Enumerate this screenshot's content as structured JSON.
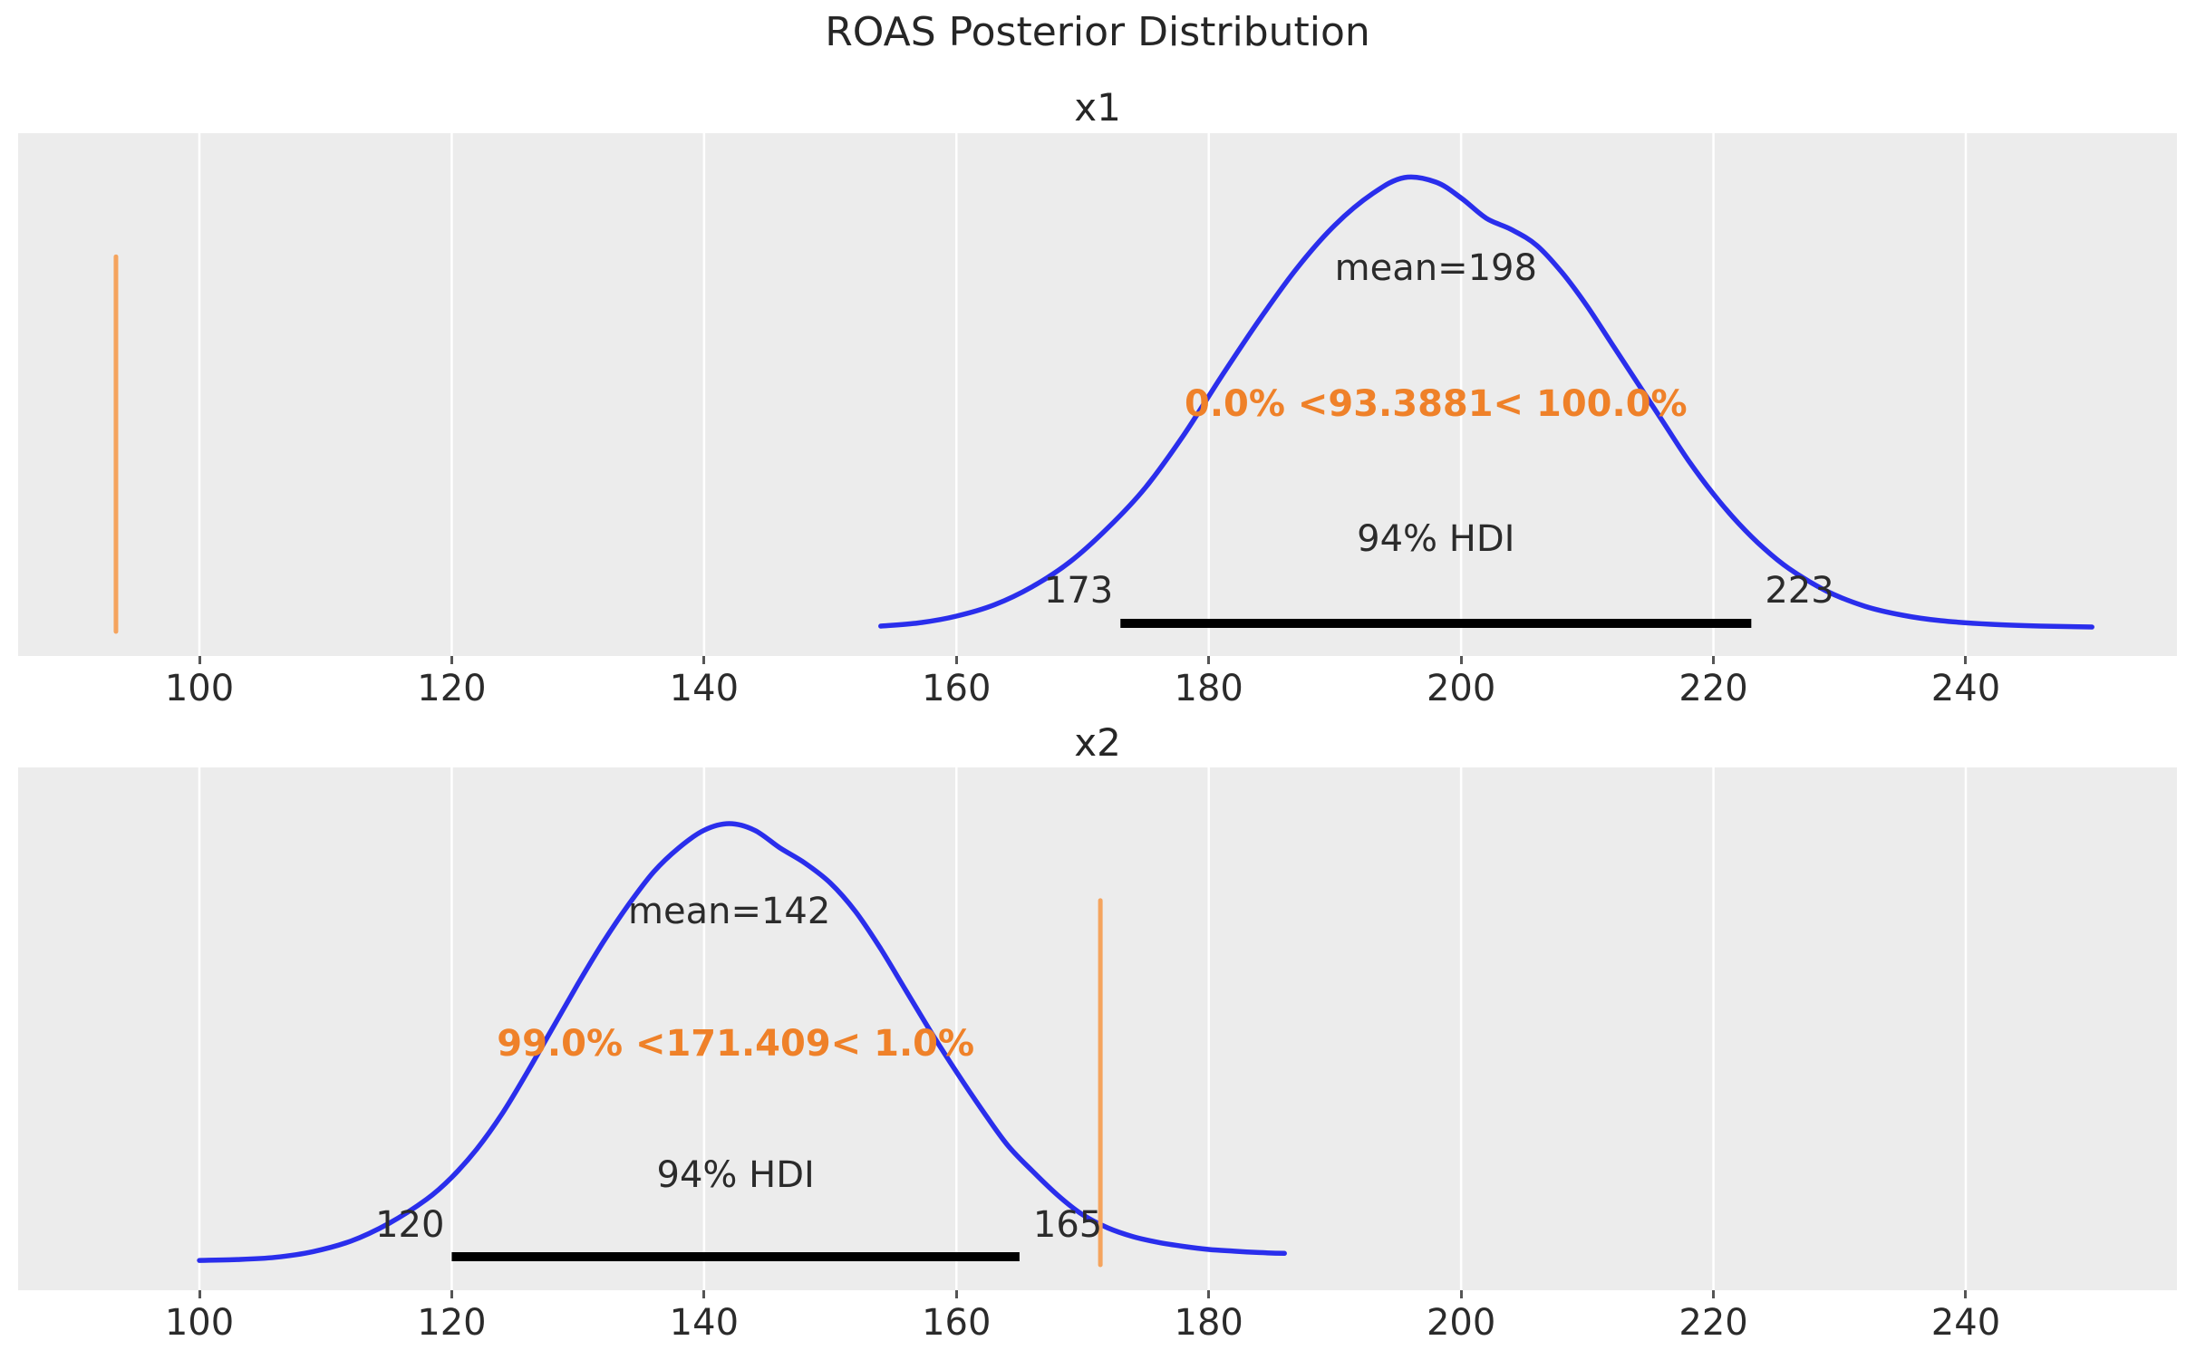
{
  "figure_title": "ROAS Posterior Distribution",
  "hdi_probability_label": "94% HDI",
  "colors": {
    "axes_background": "#ececec",
    "gridline": "#ffffff",
    "kde_curve": "#2a2eec",
    "ref_line": "#f5a45e",
    "ref_text": "#ef8129",
    "dark_text": "#2b2b2b",
    "hdi_bar": "#000000",
    "tick_mark": "#555555"
  },
  "chart_data": {
    "type": "kde-posterior",
    "title": "ROAS Posterior Distribution",
    "x_ticks": [
      100,
      120,
      140,
      160,
      180,
      200,
      220,
      240
    ],
    "x_tick_labels": [
      "100",
      "120",
      "140",
      "160",
      "180",
      "200",
      "220",
      "240"
    ],
    "panels": [
      {
        "title": "x1",
        "mean": 198,
        "mean_label": "mean=198",
        "ref_value": 93.3881,
        "ref_text": "0.0% <93.3881< 100.0%",
        "hdi_text": "94% HDI",
        "hdi_low": 173,
        "hdi_high": 223,
        "hdi_low_label": "173",
        "hdi_high_label": "223",
        "kde_x_range": [
          154,
          250
        ],
        "kde": [
          [
            154,
            0.008
          ],
          [
            157,
            0.015
          ],
          [
            160,
            0.03
          ],
          [
            163,
            0.055
          ],
          [
            166,
            0.095
          ],
          [
            169,
            0.15
          ],
          [
            172,
            0.225
          ],
          [
            175,
            0.315
          ],
          [
            178,
            0.43
          ],
          [
            181,
            0.56
          ],
          [
            184,
            0.685
          ],
          [
            187,
            0.8
          ],
          [
            190,
            0.895
          ],
          [
            193,
            0.965
          ],
          [
            195.5,
            1.0
          ],
          [
            198,
            0.99
          ],
          [
            200,
            0.955
          ],
          [
            202,
            0.91
          ],
          [
            204,
            0.885
          ],
          [
            206,
            0.85
          ],
          [
            208,
            0.79
          ],
          [
            210,
            0.715
          ],
          [
            212,
            0.63
          ],
          [
            214,
            0.545
          ],
          [
            216,
            0.46
          ],
          [
            218,
            0.375
          ],
          [
            220,
            0.3
          ],
          [
            222,
            0.235
          ],
          [
            224,
            0.18
          ],
          [
            226,
            0.135
          ],
          [
            229,
            0.085
          ],
          [
            232,
            0.052
          ],
          [
            235,
            0.032
          ],
          [
            238,
            0.02
          ],
          [
            242,
            0.012
          ],
          [
            246,
            0.008
          ],
          [
            250,
            0.006
          ]
        ]
      },
      {
        "title": "x2",
        "mean": 142,
        "mean_label": "mean=142",
        "ref_value": 171.409,
        "ref_text": "99.0% <171.409< 1.0%",
        "hdi_text": "94% HDI",
        "hdi_low": 120,
        "hdi_high": 165,
        "hdi_low_label": "120",
        "hdi_high_label": "165",
        "kde_x_range": [
          100,
          186
        ],
        "kde": [
          [
            100,
            0.006
          ],
          [
            103,
            0.008
          ],
          [
            106,
            0.013
          ],
          [
            109,
            0.026
          ],
          [
            112,
            0.05
          ],
          [
            115,
            0.09
          ],
          [
            118,
            0.145
          ],
          [
            120,
            0.195
          ],
          [
            122,
            0.26
          ],
          [
            124,
            0.34
          ],
          [
            126,
            0.435
          ],
          [
            128,
            0.535
          ],
          [
            130,
            0.635
          ],
          [
            132,
            0.73
          ],
          [
            134,
            0.815
          ],
          [
            136,
            0.89
          ],
          [
            138,
            0.945
          ],
          [
            140,
            0.985
          ],
          [
            142,
            1.0
          ],
          [
            144,
            0.985
          ],
          [
            146,
            0.945
          ],
          [
            148,
            0.91
          ],
          [
            150,
            0.865
          ],
          [
            152,
            0.8
          ],
          [
            154,
            0.715
          ],
          [
            156,
            0.62
          ],
          [
            158,
            0.525
          ],
          [
            160,
            0.435
          ],
          [
            162,
            0.35
          ],
          [
            164,
            0.27
          ],
          [
            166,
            0.21
          ],
          [
            168,
            0.155
          ],
          [
            170,
            0.11
          ],
          [
            172,
            0.08
          ],
          [
            174,
            0.06
          ],
          [
            176,
            0.047
          ],
          [
            178,
            0.038
          ],
          [
            180,
            0.031
          ],
          [
            182,
            0.027
          ],
          [
            184,
            0.024
          ],
          [
            186,
            0.022
          ]
        ]
      }
    ]
  }
}
